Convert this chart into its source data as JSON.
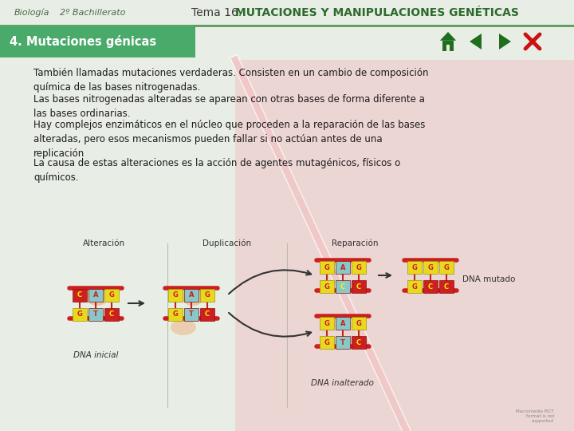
{
  "bg_color": "#e8ede5",
  "header_line_color": "#5a9a5a",
  "title_left": "Biología",
  "title_left2": "2º Bachillerato",
  "title_right_normal": "Tema 16. ",
  "title_right_bold": "MUTACIONES Y MANIPULACIONES GENÉTICAS",
  "title_right_color": "#3a3a3a",
  "title_bold_color": "#2d6a2d",
  "section_bg": "#4aaa6a",
  "section_text": "4. Mutaciones génicas",
  "section_text_color": "#ffffff",
  "diagonal_color": "#f0c8c8",
  "body_text": [
    "También llamadas mutaciones verdaderas. Consisten en un cambio de composición\nquímica de las bases nitrogenadas.",
    "Las bases nitrogenadas alteradas se aparean con otras bases de forma diferente a\nlas bases ordinarias.",
    "Hay complejos enzimáticos en el núcleo que proceden a la reparación de las bases\nalteradas, pero esos mecanismos pueden fallar si no actúan antes de una\nreplicación",
    "La causa de estas alteraciones es la acción de agentes mutagénicos, físicos o\nquímicos."
  ],
  "body_text_color": "#1a1a1a",
  "body_font_size": 8.5,
  "nav_arrow_color": "#1e6e1e",
  "nav_x_color": "#cc1111",
  "image_label1": "Alteración",
  "image_label2": "Duplicación",
  "image_label3": "Reparación",
  "image_label4": "DNA mutado",
  "image_label5": "DNA inicial",
  "image_label6": "DNA inalterado",
  "dna_yellow": "#e8d820",
  "dna_red": "#cc2020",
  "dna_cyan": "#88c8c8",
  "dna_bar_red": "#cc2020"
}
